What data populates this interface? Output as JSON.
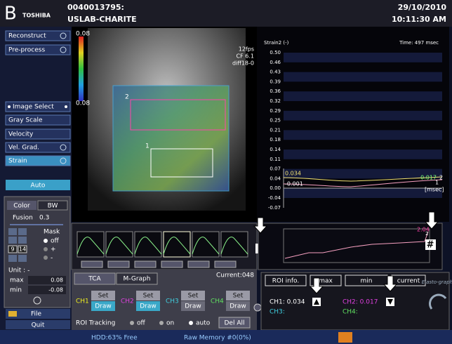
{
  "header": {
    "logo": "B",
    "brand": "TOSHIBA",
    "patient_id": "0040013795:",
    "institution": "USLAB-CHARITE",
    "date": "29/10/2010",
    "time": "10:11:30 AM"
  },
  "menu": {
    "items": [
      "Reconstruct",
      "Pre-process",
      "Image Select",
      "Gray Scale",
      "Velocity",
      "Vel. Grad.",
      "Strain"
    ],
    "auto": "Auto"
  },
  "color_panel": {
    "tabs": [
      "Color",
      "BW"
    ],
    "fusion_label": "Fusion",
    "fusion_value": "0.3",
    "mask_label": "Mask",
    "mask_options": [
      "off",
      "+",
      "-"
    ],
    "frame_start": "9",
    "frame_end": "14",
    "unit": "Unit : -",
    "max_label": "max",
    "max_value": "0.08",
    "min_label": "min",
    "min_value": "-0.08"
  },
  "file": "File",
  "quit": "Quit",
  "image": {
    "scale_top": "0.08",
    "scale_bottom": "0.08",
    "fps": "12fps",
    "cf": "CF 6.1",
    "preset": "diff18-0",
    "roi_labels": [
      "2",
      "1"
    ]
  },
  "graph": {
    "title": "Strain2 (-)",
    "time": "Time: 497 msec",
    "yticks": [
      "0.50",
      "0.46",
      "0.43",
      "0.39",
      "0.36",
      "0.32",
      "0.29",
      "0.25",
      "0.21",
      "0.18",
      "0.14",
      "0.11",
      "0.07",
      "0.04",
      "0.00",
      "-0.04",
      "-0.07"
    ],
    "ch1_start": "0.034",
    "ch2_start": "-0.001",
    "ch1_end": "0.017",
    "end_labels": [
      "2",
      "1"
    ],
    "unit": "[msec]"
  },
  "mini_graph": {
    "left_marker": "*",
    "right_marker": "#",
    "value": "2.04",
    "label": "2",
    "current": "Current:048"
  },
  "controls": {
    "tabs": [
      "TCA",
      "M-Graph"
    ],
    "channels": [
      {
        "name": "CH1",
        "set": "Set",
        "draw": "Draw"
      },
      {
        "name": "CH2",
        "set": "Set",
        "draw": "Draw"
      },
      {
        "name": "CH3",
        "set": "Set",
        "draw": "Draw"
      },
      {
        "name": "CH4",
        "set": "Set",
        "draw": "Draw"
      }
    ],
    "roi_tracking": "ROI Tracking",
    "tracking_options": [
      "off",
      "on",
      "auto"
    ],
    "del_all": "Del All"
  },
  "roi_info": {
    "tabs": [
      "ROI info.",
      "max",
      "min",
      "current"
    ],
    "ch1": "CH1: 0.034",
    "ch2": "CH2: 0.017",
    "ch3": "CH3:",
    "ch4": "CH4:"
  },
  "elastography": "Elasto-graphy",
  "status": {
    "hdd": "HDD:63% Free",
    "memory": "Raw Memory #0(0%)"
  }
}
